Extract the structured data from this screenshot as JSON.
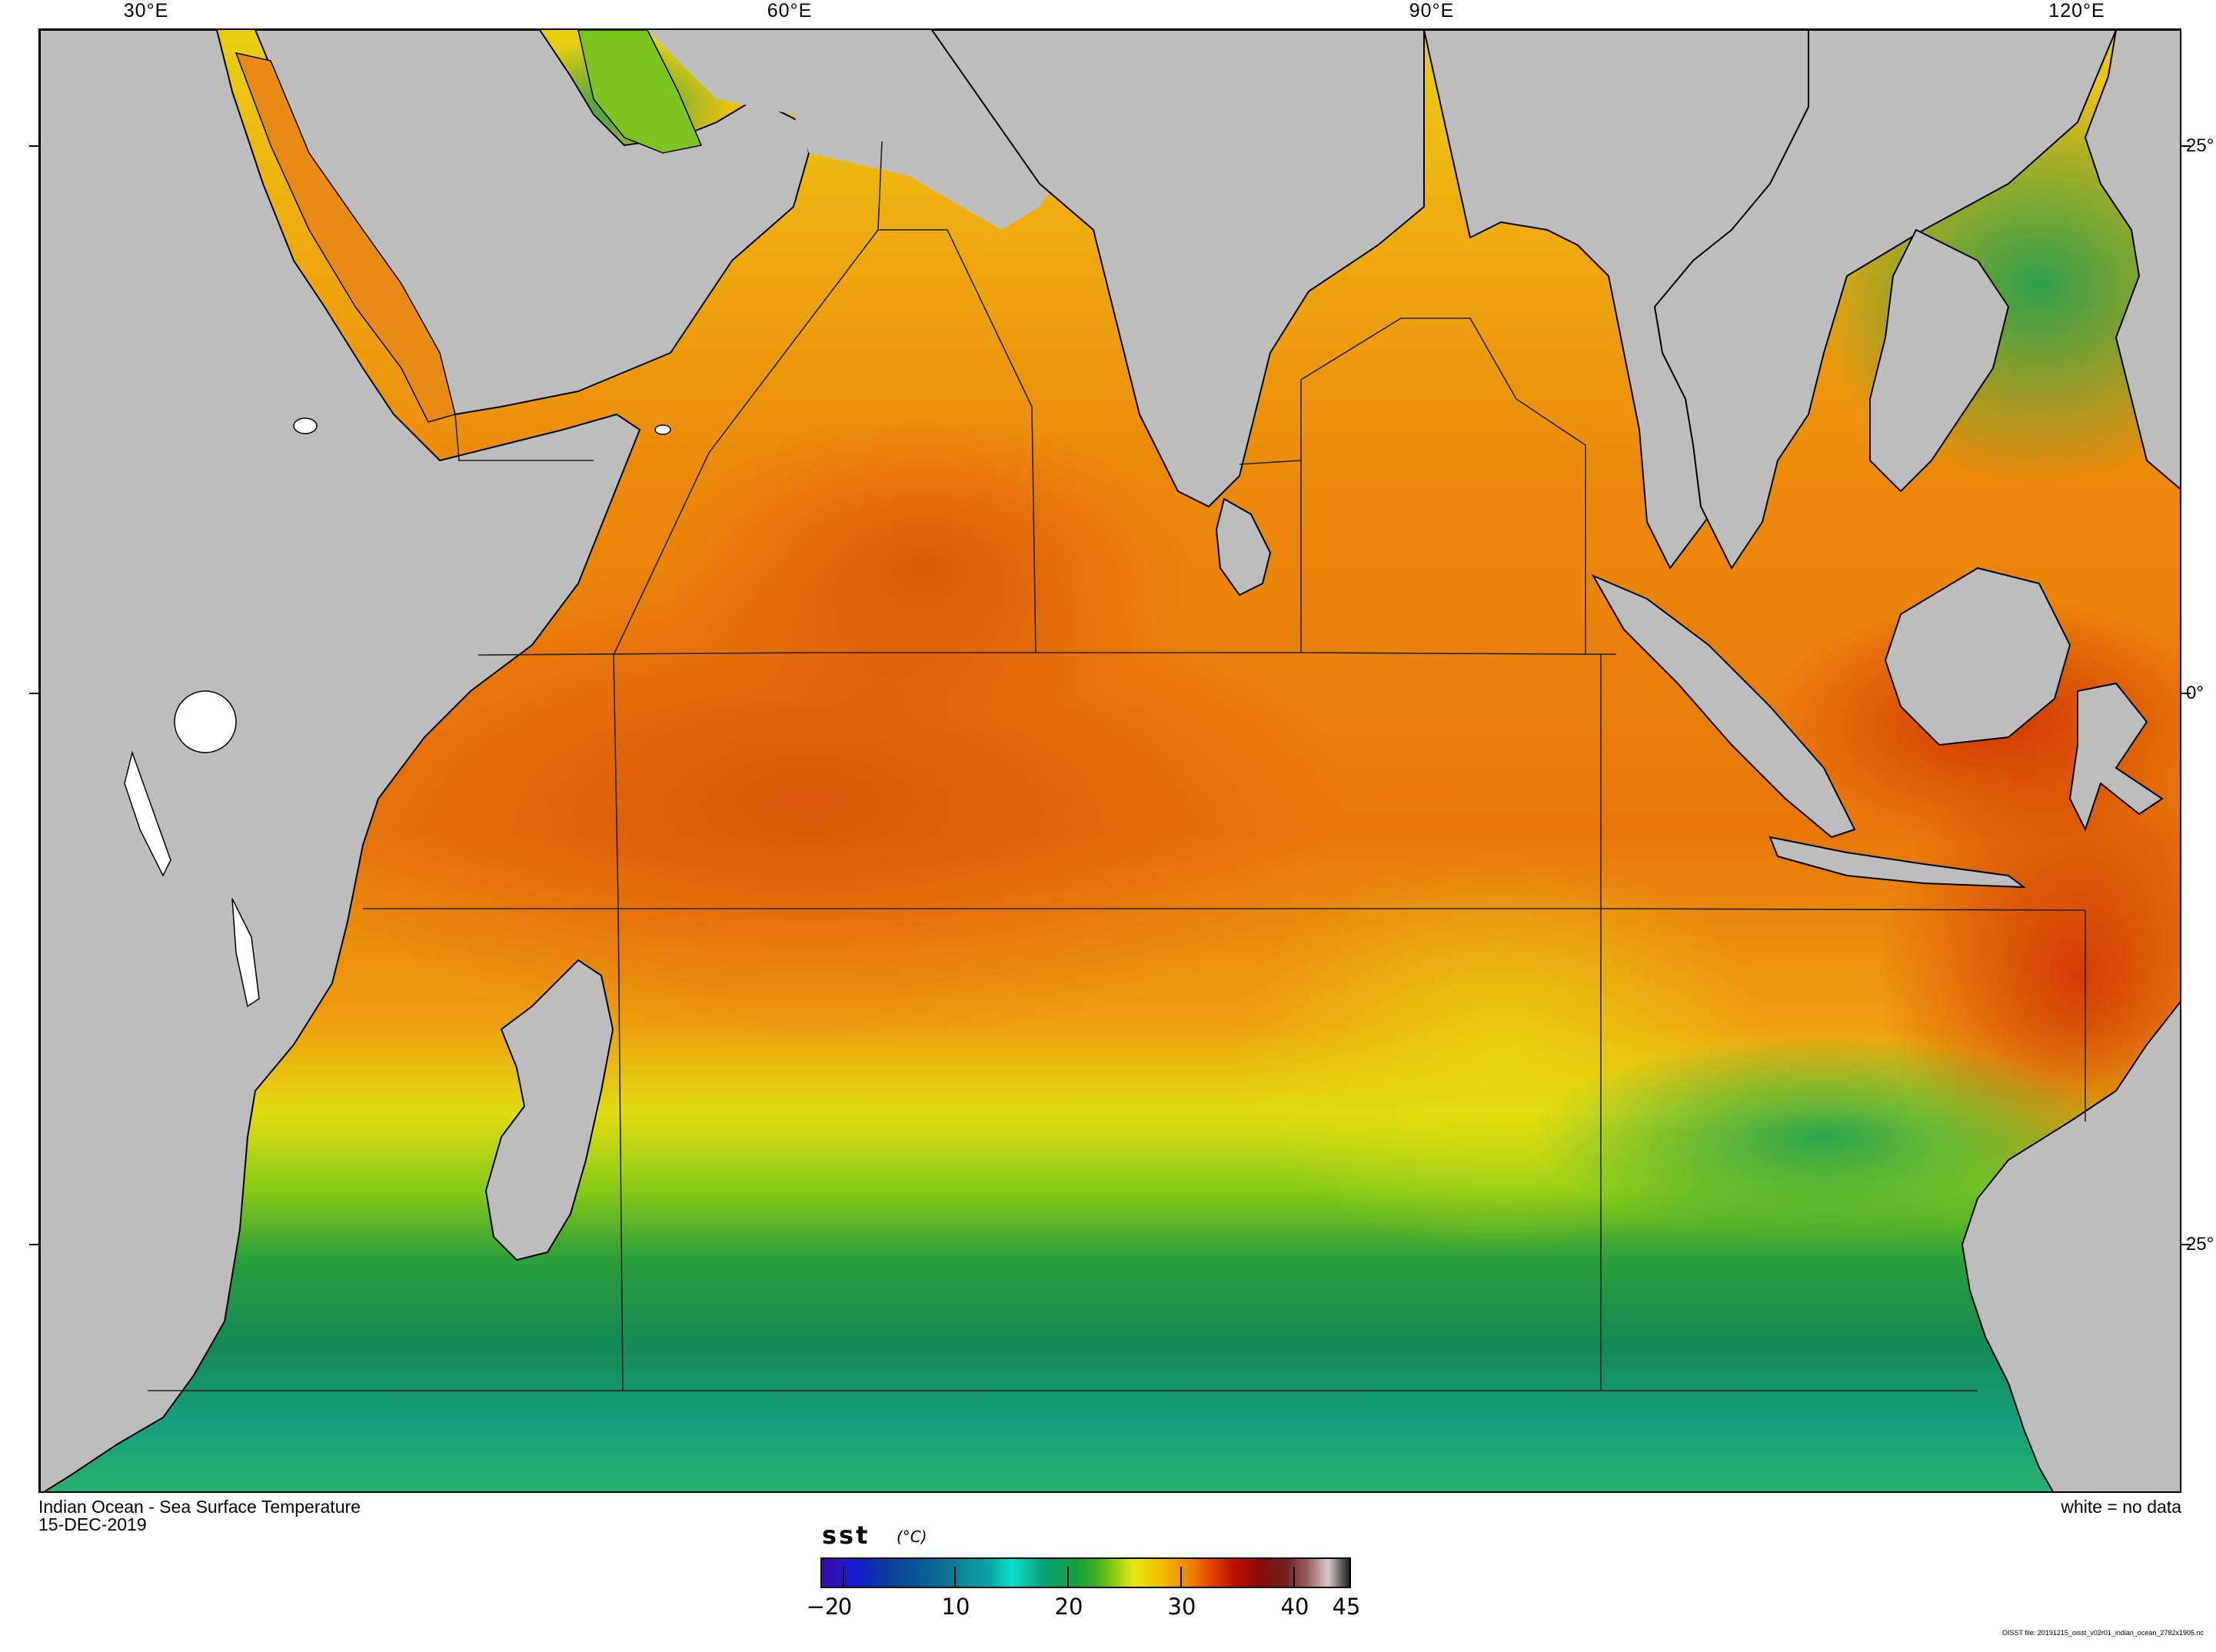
{
  "map": {
    "region": "Indian Ocean",
    "variable": "sst",
    "longitude_labels": [
      "30°E",
      "60°E",
      "90°E",
      "120°E"
    ],
    "latitude_labels": [
      "25°",
      "0°",
      "25°"
    ]
  },
  "caption": {
    "title": "Indian Ocean - Sea Surface Temperature",
    "date": "15-DEC-2019",
    "no_data_note": "white = no data"
  },
  "colorbar": {
    "variable_label": "sst",
    "units_label": "(°C)",
    "range": [
      -2,
      45
    ],
    "tick_labels": [
      "−2",
      "0",
      "10",
      "20",
      "30",
      "40",
      "45"
    ],
    "tick_values": [
      -2,
      0,
      10,
      20,
      30,
      40,
      45
    ],
    "colors": {
      "cold": "#3a0aa8",
      "cool": "#0aa7a7",
      "mild": "#14a040",
      "warm": "#e8e810",
      "hot": "#e04000",
      "very_hot": "#8a0a0a",
      "max": "#202020"
    }
  },
  "land_color": "#bdbdbd",
  "file_info": "OISST file: 20191215_oisst_v02r01_indian_ocean_2782x1905.nc"
}
